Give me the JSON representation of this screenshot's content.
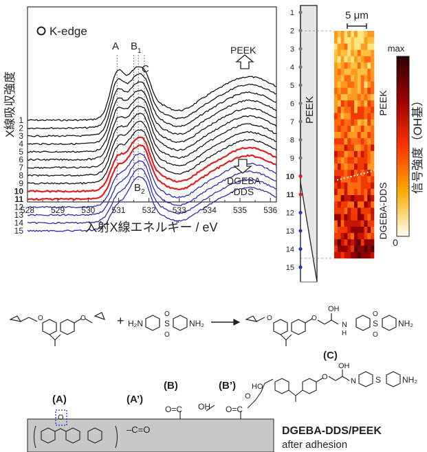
{
  "panel_a": {
    "edge_label": "K-edge",
    "edge_symbol": "O",
    "peak_labels": {
      "A": "A",
      "B1": "B",
      "B1_sub": "1",
      "C": "C",
      "B2": "B",
      "B2_sub": "2"
    },
    "arrow_top_label": "PEEK",
    "arrow_bottom_label_1": "DGEBA",
    "arrow_bottom_label_2": "-DDS",
    "x_axis_label": "入射X線エネルギー / eV",
    "y_axis_label": "X線吸収強度"
  },
  "chart_data": {
    "type": "line",
    "x_ticks": [
      528,
      529,
      530,
      531,
      532,
      533,
      534,
      535,
      536
    ],
    "xlim": [
      528,
      536.2
    ],
    "series": [
      {
        "name": "1",
        "color": "#111111"
      },
      {
        "name": "2",
        "color": "#111111"
      },
      {
        "name": "3",
        "color": "#111111"
      },
      {
        "name": "4",
        "color": "#111111"
      },
      {
        "name": "5",
        "color": "#111111"
      },
      {
        "name": "6",
        "color": "#111111"
      },
      {
        "name": "7",
        "color": "#111111"
      },
      {
        "name": "8",
        "color": "#111111"
      },
      {
        "name": "9",
        "color": "#111111"
      },
      {
        "name": "10",
        "color": "#e02020",
        "bold": true
      },
      {
        "name": "11",
        "color": "#e02020",
        "bold": true
      },
      {
        "name": "12",
        "color": "#2a2ab8"
      },
      {
        "name": "13",
        "color": "#2a2ab8"
      },
      {
        "name": "14",
        "color": "#2a2ab8"
      },
      {
        "name": "15",
        "color": "#2a2ab8"
      }
    ],
    "peak_positions_eV": {
      "A": 530.95,
      "B1": 531.5,
      "C": 531.85,
      "B2": 531.65
    }
  },
  "line_panel": {
    "points": [
      "1",
      "2",
      "3",
      "4",
      "5",
      "6",
      "7",
      "8",
      "9",
      "10",
      "11",
      "12",
      "13",
      "14",
      "15"
    ],
    "point_colors": [
      "#777777",
      "#777777",
      "#777777",
      "#777777",
      "#777777",
      "#777777",
      "#777777",
      "#777777",
      "#777777",
      "#e02020",
      "#e02020",
      "#2233cc",
      "#2233cc",
      "#2233cc",
      "#2233cc"
    ],
    "label": "PEEK"
  },
  "map_panel": {
    "scale_label": "5 μm",
    "label_top": "PEEK",
    "label_bottom": "DGEBA-DDS",
    "colorbar_max": "max",
    "colorbar_min": "0",
    "colorbar_title": "信号強度（OH基）"
  },
  "reaction": {
    "nh2_left": "H₂N",
    "nh2_right": "NH₂",
    "plus": "+",
    "so2_s": "S",
    "so2_o": "O",
    "oh": "OH",
    "nh": "N",
    "nh_h": "H"
  },
  "surface": {
    "labels": {
      "A": "(A)",
      "A_prime": "(A’)",
      "B": "(B)",
      "B_prime": "(B’)",
      "C": "(C)"
    },
    "co_label": "–C=O",
    "ho_label": "HO",
    "oh_label": "OH",
    "title": "DGEBA-DDS/PEEK",
    "subtitle": "after adhesion"
  }
}
